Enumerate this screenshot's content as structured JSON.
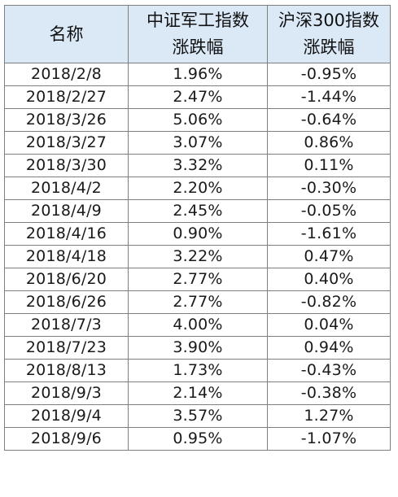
{
  "table": {
    "headers": [
      {
        "lines": [
          "名称"
        ]
      },
      {
        "lines": [
          "中证军工指数",
          "涨跌幅"
        ]
      },
      {
        "lines": [
          "沪深300指数",
          "涨跌幅"
        ]
      }
    ],
    "rows": [
      [
        "2018/2/8",
        "1.96%",
        "-0.95%"
      ],
      [
        "2018/2/27",
        "2.47%",
        "-1.44%"
      ],
      [
        "2018/3/26",
        "5.06%",
        "-0.64%"
      ],
      [
        "2018/3/27",
        "3.07%",
        "0.86%"
      ],
      [
        "2018/3/30",
        "3.32%",
        "0.11%"
      ],
      [
        "2018/4/2",
        "2.20%",
        "-0.30%"
      ],
      [
        "2018/4/9",
        "2.45%",
        "-0.05%"
      ],
      [
        "2018/4/16",
        "0.90%",
        "-1.61%"
      ],
      [
        "2018/4/18",
        "3.22%",
        "0.47%"
      ],
      [
        "2018/6/20",
        "2.77%",
        "0.40%"
      ],
      [
        "2018/6/26",
        "2.77%",
        "-0.82%"
      ],
      [
        "2018/7/3",
        "4.00%",
        "0.04%"
      ],
      [
        "2018/7/23",
        "3.90%",
        "0.94%"
      ],
      [
        "2018/8/13",
        "1.73%",
        "-0.43%"
      ],
      [
        "2018/9/3",
        "2.14%",
        "-0.38%"
      ],
      [
        "2018/9/4",
        "3.57%",
        "1.27%"
      ],
      [
        "2018/9/6",
        "0.95%",
        "-1.07%"
      ]
    ]
  },
  "colors": {
    "header_background": "#dbe9f7",
    "border": "#7f7f7f",
    "text": "#1a1a1a"
  }
}
